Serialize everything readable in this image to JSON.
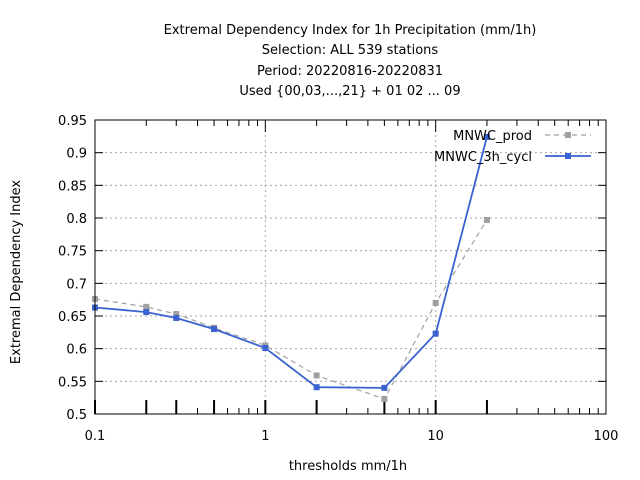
{
  "chart_data": {
    "type": "line",
    "title_lines": [
      "Extremal Dependency Index  for 1h Precipitation (mm/1h)",
      "Selection: ALL     539 stations",
      "Period: 20220816-20220831",
      "Used {00,03,...,21} + 01 02 ... 09"
    ],
    "xlabel": "thresholds mm/1h",
    "ylabel": "Extremal Dependency Index",
    "x_scale": "log",
    "xlim": [
      0.1,
      100
    ],
    "ylim": [
      0.5,
      0.95
    ],
    "x_ticks": [
      0.1,
      1,
      10,
      100
    ],
    "x_tick_labels": [
      "0.1",
      "1",
      "10",
      "100"
    ],
    "y_ticks": [
      0.5,
      0.55,
      0.6,
      0.65,
      0.7,
      0.75,
      0.8,
      0.85,
      0.9,
      0.95
    ],
    "y_tick_labels": [
      "0.5",
      "0.55",
      "0.6",
      "0.65",
      "0.7",
      "0.75",
      "0.8",
      "0.85",
      "0.9",
      "0.95"
    ],
    "grid": true,
    "legend_position": "top-right",
    "x": [
      0.1,
      0.2,
      0.3,
      0.5,
      1,
      2,
      5,
      10,
      20
    ],
    "series": [
      {
        "name": "MNWC_prod",
        "color": "#a0a0a0",
        "dash": "dashed",
        "values": [
          0.676,
          0.664,
          0.653,
          0.632,
          0.605,
          0.559,
          0.523,
          0.67,
          0.797
        ]
      },
      {
        "name": "MNWC_3h_cycl",
        "color": "#3a62d0",
        "dash": "solid",
        "values": [
          0.663,
          0.656,
          0.647,
          0.63,
          0.601,
          0.541,
          0.54,
          0.623,
          0.924
        ]
      }
    ]
  }
}
